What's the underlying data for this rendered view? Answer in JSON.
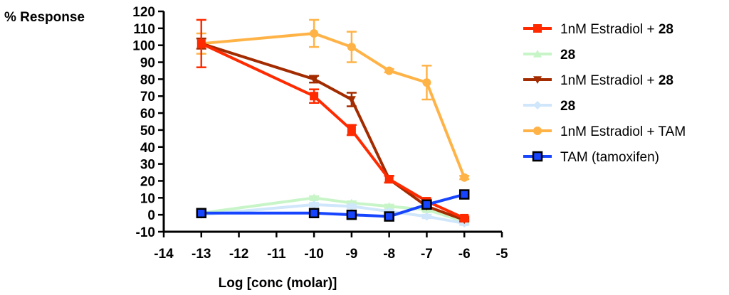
{
  "chart_data": {
    "type": "line",
    "ylabel": "% Response",
    "xlabel": "Log [conc (molar)]",
    "xlim": [
      -14,
      -5
    ],
    "ylim": [
      -10,
      120
    ],
    "xticks": [
      -14,
      -13,
      -12,
      -11,
      -10,
      -9,
      -8,
      -7,
      -6,
      -5
    ],
    "yticks": [
      120,
      110,
      100,
      90,
      80,
      70,
      60,
      50,
      40,
      30,
      20,
      10,
      0,
      -10
    ],
    "legend_position": "right",
    "series": [
      {
        "name": "1nM Estradiol + 28",
        "label_main": "1nM Estradiol + ",
        "label_bold": "28",
        "color": "#ff2a00",
        "marker": "square",
        "x": [
          -13,
          -10,
          -9,
          -8,
          -7,
          -6
        ],
        "y": [
          101,
          70,
          50,
          21,
          8,
          -2
        ],
        "err": [
          14,
          4,
          3,
          2,
          1,
          1
        ]
      },
      {
        "name": "28",
        "label_main": "",
        "label_bold": "28",
        "color": "#c8f5c8",
        "marker": "triangle-up",
        "x": [
          -13,
          -10,
          -9,
          -8,
          -7,
          -6
        ],
        "y": [
          1,
          10,
          7,
          5,
          3,
          -4
        ],
        "err": [
          1,
          1,
          1,
          1,
          1,
          1
        ]
      },
      {
        "name": "1nM Estradiol + 28",
        "label_main": "1nM Estradiol + ",
        "label_bold": "28",
        "color": "#a32b00",
        "marker": "triangle-down",
        "x": [
          -13,
          -10,
          -9,
          -8,
          -7,
          -6
        ],
        "y": [
          101,
          80,
          68,
          21,
          5,
          -3
        ],
        "err": [
          3,
          2,
          4,
          2,
          1,
          1
        ]
      },
      {
        "name": "28",
        "label_main": "",
        "label_bold": "28",
        "color": "#cfe6fb",
        "marker": "diamond",
        "x": [
          -13,
          -10,
          -9,
          -8,
          -7,
          -6
        ],
        "y": [
          0,
          6,
          5,
          2,
          -1,
          -5
        ],
        "err": [
          1,
          1,
          1,
          1,
          1,
          1
        ]
      },
      {
        "name": "1nM Estradiol + TAM",
        "label_main": "1nM Estradiol + TAM",
        "label_bold": "",
        "color": "#ffb347",
        "marker": "circle",
        "x": [
          -13,
          -10,
          -9,
          -8,
          -7,
          -6
        ],
        "y": [
          101,
          107,
          99,
          85,
          78,
          22
        ],
        "err": [
          6,
          8,
          9,
          1,
          10,
          1
        ]
      },
      {
        "name": "TAM (tamoxifen)",
        "label_main": "TAM (tamoxifen)",
        "label_bold": "",
        "color": "#1745ff",
        "marker": "square-outline",
        "x": [
          -13,
          -10,
          -9,
          -8,
          -7,
          -6
        ],
        "y": [
          1,
          1,
          0,
          -1,
          6,
          12
        ],
        "err": [
          0,
          0,
          0,
          0,
          0,
          0
        ]
      }
    ]
  }
}
